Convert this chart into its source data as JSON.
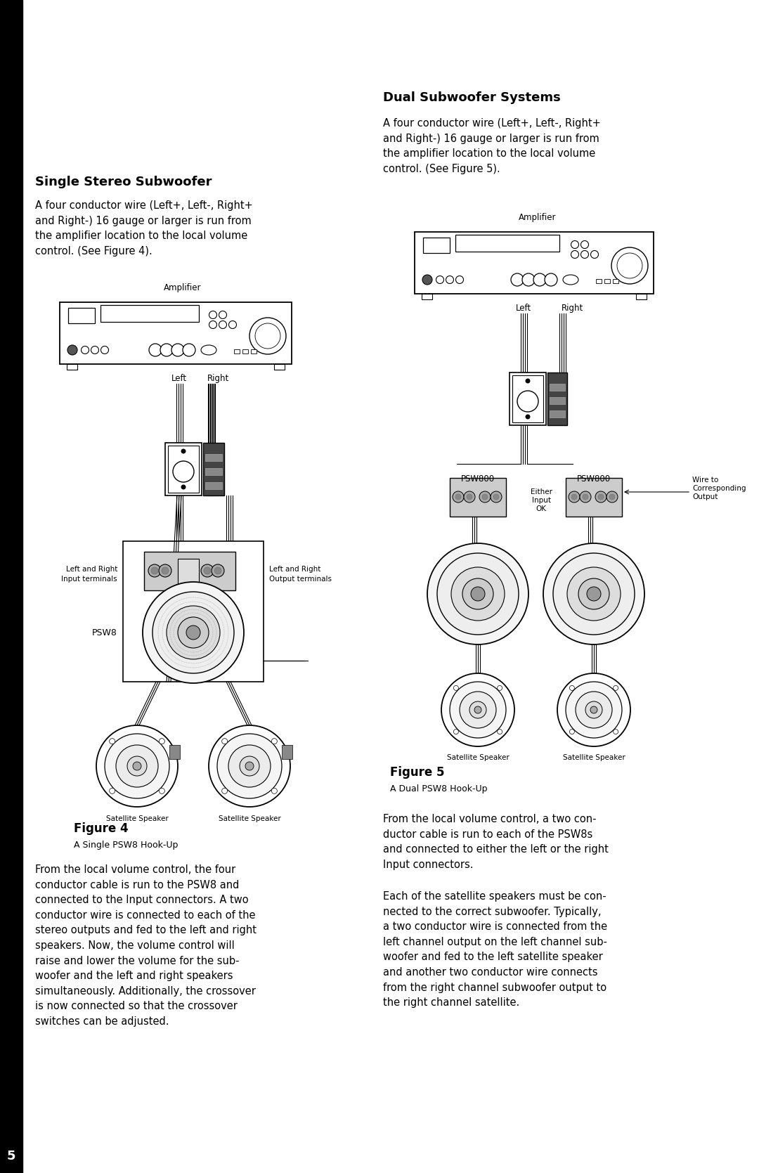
{
  "bg_color": "#ffffff",
  "page_number": "5",
  "title_left": "Single Stereo Subwoofer",
  "title_right": "Dual Subwoofer Systems",
  "body_left_1": "A four conductor wire (Left+, Left-, Right+\nand Right-) 16 gauge or larger is run from\nthe amplifier location to the local volume\ncontrol. (See Figure 4).",
  "body_right_1": "A four conductor wire (Left+, Left-, Right+\nand Right-) 16 gauge or larger is run from\nthe amplifier location to the local volume\ncontrol. (See Figure 5).",
  "figure4_caption_line1": "Figure 4",
  "figure4_caption_line2": "A Single PSW8 Hook-Up",
  "figure5_caption_line1": "Figure 5",
  "figure5_caption_line2": "A Dual PSW8 Hook-Up",
  "body_left_2": "From the local volume control, the four\nconductor cable is run to the PSW8 and\nconnected to the Input connectors. A two\nconductor wire is connected to each of the\nstereo outputs and fed to the left and right\nspeakers. Now, the volume control will\nraise and lower the volume for the sub-\nwoofer and the left and right speakers\nsimultaneously. Additionally, the crossover\nis now connected so that the crossover\nswitches can be adjusted.",
  "body_right_2a": "From the local volume control, a two con-\nductor cable is run to each of the PSW8s\nand connected to either the left or the right\nInput connectors.",
  "body_right_2b": "Each of the satellite speakers must be con-\nnected to the correct subwoofer. Typically,\na two conductor wire is connected from the\nleft channel output on the left channel sub-\nwoofer and fed to the left satellite speaker\nand another two conductor wire connects\nfrom the right channel subwoofer output to\nthe right channel satellite."
}
